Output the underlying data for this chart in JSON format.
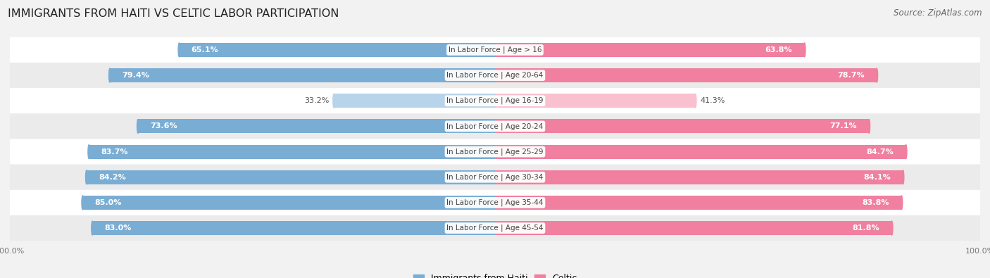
{
  "title": "IMMIGRANTS FROM HAITI VS CELTIC LABOR PARTICIPATION",
  "source": "Source: ZipAtlas.com",
  "categories": [
    "In Labor Force | Age > 16",
    "In Labor Force | Age 20-64",
    "In Labor Force | Age 16-19",
    "In Labor Force | Age 20-24",
    "In Labor Force | Age 25-29",
    "In Labor Force | Age 30-34",
    "In Labor Force | Age 35-44",
    "In Labor Force | Age 45-54"
  ],
  "haiti_values": [
    65.1,
    79.4,
    33.2,
    73.6,
    83.7,
    84.2,
    85.0,
    83.0
  ],
  "celtic_values": [
    63.8,
    78.7,
    41.3,
    77.1,
    84.7,
    84.1,
    83.8,
    81.8
  ],
  "haiti_color": "#7aadd4",
  "celtic_color": "#f07fa0",
  "haiti_light_color": "#b8d4ea",
  "celtic_light_color": "#f9c0d0",
  "background_color": "#f2f2f2",
  "row_colors": [
    "#ffffff",
    "#ebebeb"
  ],
  "max_value": 100.0,
  "bar_height": 0.55,
  "title_fontsize": 11.5,
  "value_fontsize": 8,
  "cat_fontsize": 7.5,
  "legend_fontsize": 9,
  "source_fontsize": 8.5
}
